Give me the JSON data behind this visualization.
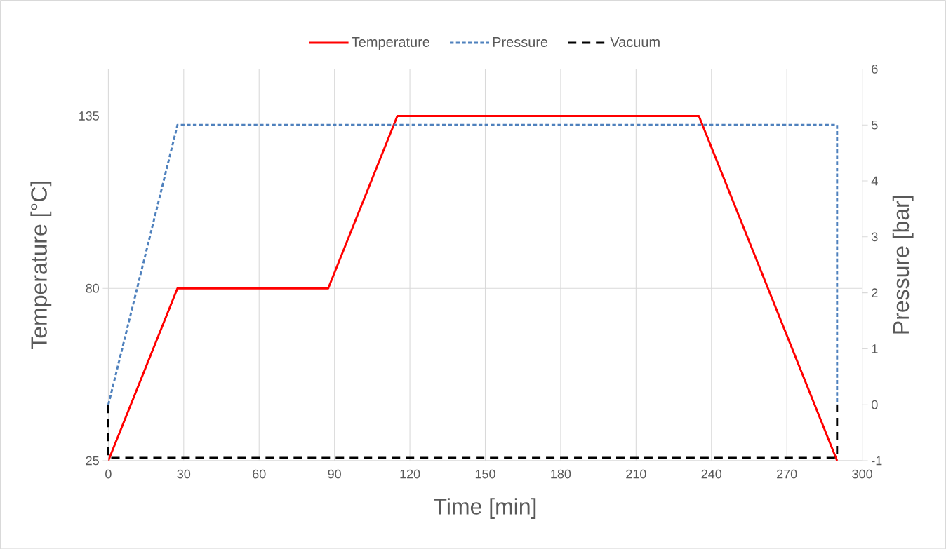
{
  "chart_data": {
    "type": "line",
    "xlabel": "Time [min]",
    "ylabel": "Temperature [°C]",
    "y2label": "Pressure [bar]",
    "xlim": [
      0,
      300
    ],
    "xticks": [
      0,
      30,
      60,
      90,
      120,
      150,
      180,
      210,
      240,
      270,
      300
    ],
    "ylim": [
      25,
      150
    ],
    "yticks": [
      25,
      80,
      135
    ],
    "y2lim": [
      -1,
      6
    ],
    "y2ticks": [
      -1,
      0,
      1,
      2,
      3,
      4,
      5,
      6
    ],
    "grid": true,
    "legend": "top",
    "marker": "none",
    "series": [
      {
        "name": "Temperature",
        "color": "#ff0000",
        "line_style": "solid",
        "x": [
          0,
          27.5,
          87.5,
          115,
          235,
          290
        ],
        "values": [
          25,
          80,
          80,
          135,
          135,
          25
        ]
      },
      {
        "name": "Pressure",
        "color": "#4f81bd",
        "line_style": "dotted",
        "axis": "y2",
        "x": [
          0,
          27.5,
          290,
          290
        ],
        "values": [
          0,
          5,
          5,
          0
        ]
      },
      {
        "name": "Vacuum",
        "color": "#000000",
        "line_style": "dashed",
        "axis": "y2",
        "x": [
          0,
          0,
          290,
          290
        ],
        "values": [
          0,
          -0.95,
          -0.95,
          0
        ]
      }
    ]
  }
}
